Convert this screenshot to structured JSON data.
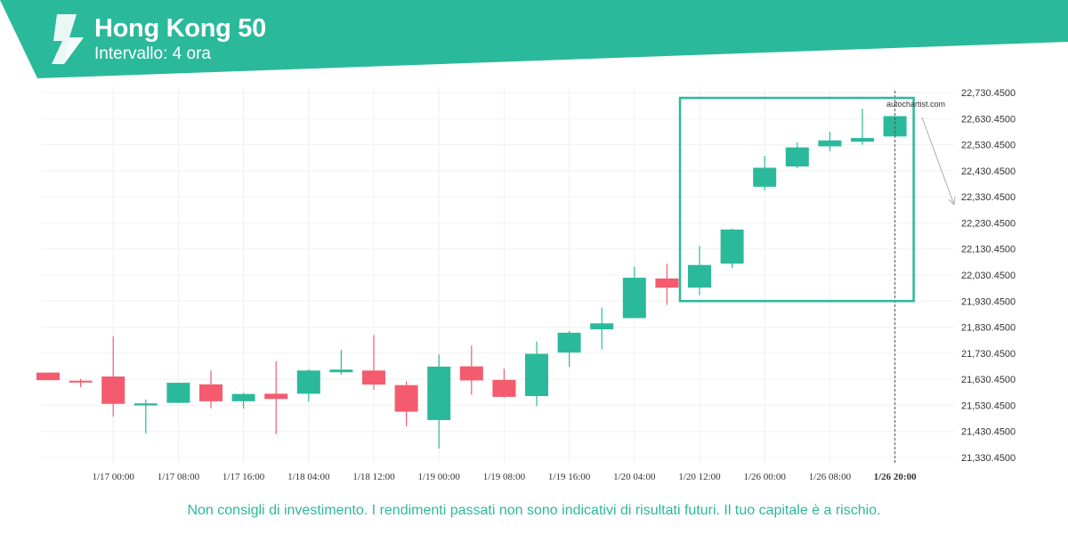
{
  "header": {
    "title": "Hong Kong 50",
    "subtitle": "Intervallo: 4 ora"
  },
  "watermark": "autochartist.com",
  "disclaimer": "Non consigli di investimento. I rendimenti passati non sono indicativi di risultati futuri. Il tuo capitale è a rischio.",
  "colors": {
    "header": "#2bb99b",
    "up": "#2bb99b",
    "down": "#f45b6e",
    "grid": "#f0f0f0",
    "pattern_box": "#2bb99b",
    "projection_arrow": "#aaaaaa"
  },
  "chart_data": {
    "type": "candlestick",
    "title": "Hong Kong 50",
    "subtitle": "Intervallo: 4 ora",
    "ylim": [
      21290,
      22750
    ],
    "y_ticks": [
      21330.45,
      21430.45,
      21530.45,
      21630.45,
      21730.45,
      21830.45,
      21930.45,
      22030.45,
      22130.45,
      22230.45,
      22330.45,
      22430.45,
      22530.45,
      22630.45,
      22730.45
    ],
    "y_tick_labels": [
      "21,330.4500",
      "21,430.4500",
      "21,530.4500",
      "21,630.4500",
      "21,730.4500",
      "21,830.4500",
      "21,930.4500",
      "22,030.4500",
      "22,130.4500",
      "22,230.4500",
      "22,330.4500",
      "22,430.4500",
      "22,530.4500",
      "22,630.4500",
      "22,730.4500"
    ],
    "x_tick_labels": [
      {
        "label": "1/17 00:00",
        "index": 2
      },
      {
        "label": "1/17 08:00",
        "index": 4
      },
      {
        "label": "1/17 16:00",
        "index": 6
      },
      {
        "label": "1/18 04:00",
        "index": 8
      },
      {
        "label": "1/18 12:00",
        "index": 10
      },
      {
        "label": "1/19 00:00",
        "index": 12
      },
      {
        "label": "1/19 08:00",
        "index": 14
      },
      {
        "label": "1/19 16:00",
        "index": 16
      },
      {
        "label": "1/20 04:00",
        "index": 18
      },
      {
        "label": "1/20 12:00",
        "index": 20
      },
      {
        "label": "1/26 00:00",
        "index": 22
      },
      {
        "label": "1/26 08:00",
        "index": 24
      },
      {
        "label": "1/26 20:00",
        "index": 26,
        "current": true
      }
    ],
    "candles": [
      {
        "o": 21656,
        "h": 21656,
        "l": 21627,
        "c": 21627
      },
      {
        "o": 21625,
        "h": 21632,
        "l": 21600,
        "c": 21618
      },
      {
        "o": 21641,
        "h": 21795,
        "l": 21487,
        "c": 21536
      },
      {
        "o": 21530,
        "h": 21553,
        "l": 21422,
        "c": 21538
      },
      {
        "o": 21540,
        "h": 21617,
        "l": 21540,
        "c": 21617
      },
      {
        "o": 21611,
        "h": 21664,
        "l": 21520,
        "c": 21546
      },
      {
        "o": 21546,
        "h": 21578,
        "l": 21518,
        "c": 21574
      },
      {
        "o": 21575,
        "h": 21700,
        "l": 21420,
        "c": 21555
      },
      {
        "o": 21575,
        "h": 21668,
        "l": 21545,
        "c": 21664
      },
      {
        "o": 21662,
        "h": 21743,
        "l": 21648,
        "c": 21663
      },
      {
        "o": 21664,
        "h": 21800,
        "l": 21590,
        "c": 21610
      },
      {
        "o": 21608,
        "h": 21622,
        "l": 21450,
        "c": 21506
      },
      {
        "o": 21474,
        "h": 21726,
        "l": 21365,
        "c": 21679
      },
      {
        "o": 21680,
        "h": 21760,
        "l": 21571,
        "c": 21626
      },
      {
        "o": 21628,
        "h": 21671,
        "l": 21560,
        "c": 21563
      },
      {
        "o": 21566,
        "h": 21775,
        "l": 21528,
        "c": 21728
      },
      {
        "o": 21733,
        "h": 21816,
        "l": 21678,
        "c": 21809
      },
      {
        "o": 21822,
        "h": 21905,
        "l": 21745,
        "c": 21845
      },
      {
        "o": 21865,
        "h": 22062,
        "l": 21865,
        "c": 22020
      },
      {
        "o": 22017,
        "h": 22073,
        "l": 21916,
        "c": 21982
      },
      {
        "o": 21982,
        "h": 22142,
        "l": 21953,
        "c": 22069
      },
      {
        "o": 22074,
        "h": 22208,
        "l": 22058,
        "c": 22205
      },
      {
        "o": 22369,
        "h": 22488,
        "l": 22355,
        "c": 22442
      },
      {
        "o": 22447,
        "h": 22540,
        "l": 22440,
        "c": 22520
      },
      {
        "o": 22524,
        "h": 22580,
        "l": 22505,
        "c": 22547
      },
      {
        "o": 22542,
        "h": 22668,
        "l": 22530,
        "c": 22556
      },
      {
        "o": 22562,
        "h": 22640,
        "l": 22562,
        "c": 22640
      }
    ],
    "pattern_box": {
      "from_index": 20,
      "to_index": 26,
      "low": 21930.45,
      "high": 22710
    },
    "current_index": 26,
    "grid": true
  }
}
